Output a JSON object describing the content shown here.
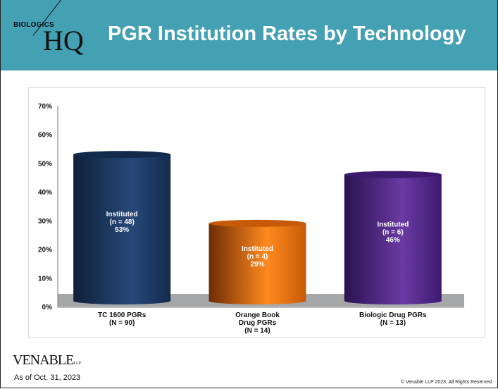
{
  "header": {
    "logo_top": "BIOLOGICS",
    "logo_main": "HQ",
    "title": "PGR Institution Rates by Technology"
  },
  "footer": {
    "brand": "VENABLE",
    "brand_suffix": "LLP",
    "as_of": "As of Oct. 31, 2023",
    "copyright": "© Venable LLP 2023. All Rights Reserved."
  },
  "colors": {
    "header_bg": "#44A0B3",
    "floor": "#A5A7A9"
  },
  "chart_data": {
    "type": "bar",
    "style": "3d-cylinder",
    "title": "",
    "ylim": [
      0,
      70
    ],
    "yticks": [
      "0%",
      "10%",
      "20%",
      "30%",
      "40%",
      "50%",
      "60%",
      "70%"
    ],
    "categories": [
      [
        "TC 1600 PGRs",
        "(N = 90)"
      ],
      [
        "Orange Book",
        "Drug PGRs",
        "(N = 14)"
      ],
      [
        "Biologic Drug PGRs",
        "(N = 13)"
      ]
    ],
    "values": [
      53,
      29,
      46
    ],
    "data_labels": [
      [
        "Instituted",
        "(n = 48)",
        "53%"
      ],
      [
        "Instituted",
        "(n = 4)",
        "29%"
      ],
      [
        "Instituted",
        "(n = 6)",
        "46%"
      ]
    ],
    "colors": [
      [
        "#0f1f38",
        "#27497a",
        "#142a4c"
      ],
      [
        "#6e2c05",
        "#ff8a1e",
        "#c65a08"
      ],
      [
        "#2a1250",
        "#6a3aa3",
        "#3d1a70"
      ]
    ],
    "grid": false,
    "legend": "none"
  }
}
